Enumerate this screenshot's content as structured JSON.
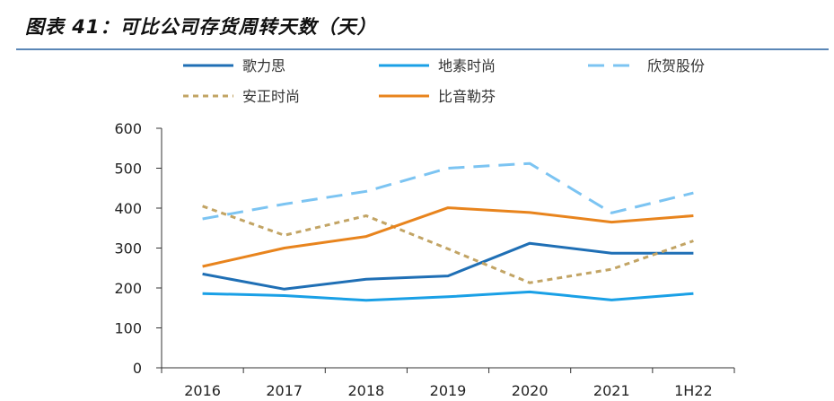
{
  "header": {
    "title": "图表 41：可比公司存货周转天数（天）"
  },
  "chart_data": {
    "type": "line",
    "title": "图表 41：可比公司存货周转天数（天）",
    "xlabel": "",
    "ylabel": "",
    "categories": [
      "2016",
      "2017",
      "2018",
      "2019",
      "2020",
      "2021",
      "1H22"
    ],
    "ylim": [
      0,
      600
    ],
    "yticks": [
      0,
      100,
      200,
      300,
      400,
      500,
      600
    ],
    "grid": false,
    "legend": "top",
    "series": [
      {
        "name": "歌力思",
        "color": "#1f6fb5",
        "dash": "solid",
        "values": [
          235,
          197,
          222,
          230,
          312,
          287,
          287
        ]
      },
      {
        "name": "地素时尚",
        "color": "#1aa0e6",
        "dash": "solid",
        "values": [
          186,
          181,
          169,
          178,
          190,
          170,
          186
        ]
      },
      {
        "name": "欣贺股份",
        "color": "#7cc4f2",
        "dash": "longdash",
        "values": [
          373,
          410,
          442,
          500,
          512,
          388,
          438
        ]
      },
      {
        "name": "安正时尚",
        "color": "#c2a464",
        "dash": "shortdash",
        "values": [
          405,
          332,
          381,
          298,
          213,
          247,
          318
        ]
      },
      {
        "name": "比音勒芬",
        "color": "#e8841d",
        "dash": "solid",
        "values": [
          254,
          300,
          329,
          401,
          389,
          365,
          381
        ]
      }
    ]
  }
}
